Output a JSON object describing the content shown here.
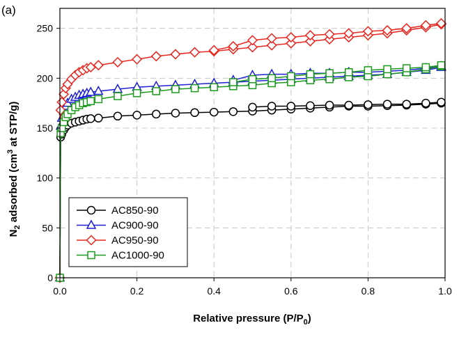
{
  "panel_label": "(a)",
  "chart_data": {
    "type": "line",
    "xlim": [
      0.0,
      1.0
    ],
    "ylim": [
      0,
      270
    ],
    "x_ticks": [
      {
        "value": 0.0,
        "label": "0.0"
      },
      {
        "value": 0.2,
        "label": "0.2"
      },
      {
        "value": 0.4,
        "label": "0.4"
      },
      {
        "value": 0.6,
        "label": "0.6"
      },
      {
        "value": 0.8,
        "label": "0.8"
      },
      {
        "value": 1.0,
        "label": "1.0"
      }
    ],
    "y_ticks": [
      {
        "value": 0,
        "label": "0"
      },
      {
        "value": 50,
        "label": "50"
      },
      {
        "value": 100,
        "label": "100"
      },
      {
        "value": 150,
        "label": "150"
      },
      {
        "value": 200,
        "label": "200"
      },
      {
        "value": 250,
        "label": "250"
      }
    ],
    "grid": true,
    "legend_position": "bottom-left",
    "xlabel": {
      "main": "Relative pressure (P/P",
      "sub": "0",
      "tail": ")"
    },
    "ylabel": {
      "pre": "N",
      "sub": "2",
      "mid": " adsorbed (cm",
      "sup": "3",
      "tail": " at STP/g)"
    },
    "series": [
      {
        "name": "AC850-90",
        "color": "#000000",
        "marker": "circle",
        "adsorption": {
          "x": [
            0.0,
            0.002,
            0.005,
            0.01,
            0.015,
            0.02,
            0.03,
            0.04,
            0.05,
            0.06,
            0.07,
            0.08,
            0.1,
            0.15,
            0.2,
            0.25,
            0.3,
            0.35,
            0.4,
            0.45,
            0.5,
            0.55,
            0.6,
            0.65,
            0.7,
            0.75,
            0.8,
            0.85,
            0.9,
            0.95,
            0.99
          ],
          "y": [
            0,
            141,
            144,
            148,
            151,
            153,
            155,
            156,
            157,
            158,
            159,
            159.5,
            160,
            162,
            163,
            164,
            165,
            165.5,
            166,
            166.5,
            167,
            168,
            169,
            170,
            171,
            172,
            172,
            172.5,
            173,
            174,
            175
          ]
        },
        "desorption": {
          "x": [
            0.99,
            0.95,
            0.9,
            0.85,
            0.8,
            0.75,
            0.7,
            0.65,
            0.6,
            0.55,
            0.5
          ],
          "y": [
            176,
            175,
            174,
            174,
            173.5,
            173,
            173,
            172.5,
            172,
            172,
            171
          ]
        }
      },
      {
        "name": "AC900-90",
        "color": "#1f1fd6",
        "marker": "triangle",
        "adsorption": {
          "x": [
            0.0,
            0.002,
            0.005,
            0.01,
            0.015,
            0.02,
            0.03,
            0.04,
            0.05,
            0.06,
            0.07,
            0.08,
            0.1,
            0.15,
            0.2,
            0.25,
            0.3,
            0.35,
            0.4,
            0.45,
            0.5,
            0.55,
            0.6,
            0.65,
            0.7,
            0.75,
            0.8,
            0.85,
            0.9,
            0.95,
            0.99
          ],
          "y": [
            0,
            152,
            160,
            167,
            172,
            175,
            179,
            181,
            183,
            184,
            185,
            186,
            187,
            189,
            191,
            192,
            193,
            194,
            195,
            196,
            197,
            198,
            199,
            200,
            201,
            202,
            203,
            204,
            206,
            208,
            211
          ]
        },
        "desorption": {
          "x": [
            0.99,
            0.95,
            0.9,
            0.85,
            0.8,
            0.75,
            0.7,
            0.65,
            0.6,
            0.55,
            0.5,
            0.45
          ],
          "y": [
            212,
            210,
            208,
            207,
            206,
            206,
            205,
            205,
            204,
            204,
            203,
            198
          ]
        }
      },
      {
        "name": "AC950-90",
        "color": "#e8261e",
        "marker": "diamond",
        "adsorption": {
          "x": [
            0.0,
            0.002,
            0.005,
            0.01,
            0.015,
            0.02,
            0.03,
            0.04,
            0.05,
            0.06,
            0.07,
            0.08,
            0.1,
            0.15,
            0.2,
            0.25,
            0.3,
            0.35,
            0.4,
            0.45,
            0.5,
            0.55,
            0.6,
            0.65,
            0.7,
            0.75,
            0.8,
            0.85,
            0.9,
            0.95,
            0.99
          ],
          "y": [
            0,
            168,
            176,
            184,
            190,
            194,
            199,
            203,
            206,
            208,
            210,
            211,
            213,
            216,
            219,
            222,
            224,
            226,
            227,
            229,
            231,
            233,
            235,
            237,
            239,
            241,
            243,
            245,
            248,
            251,
            254
          ]
        },
        "desorption": {
          "x": [
            0.99,
            0.95,
            0.9,
            0.85,
            0.8,
            0.75,
            0.7,
            0.65,
            0.6,
            0.55,
            0.5,
            0.45,
            0.4
          ],
          "y": [
            255,
            253,
            250,
            248,
            247,
            245,
            244,
            243,
            241,
            240,
            238,
            232,
            228
          ]
        }
      },
      {
        "name": "AC1000-90",
        "color": "#1c9a1c",
        "marker": "square",
        "adsorption": {
          "x": [
            0.0,
            0.002,
            0.005,
            0.01,
            0.015,
            0.02,
            0.03,
            0.04,
            0.05,
            0.06,
            0.07,
            0.08,
            0.1,
            0.15,
            0.2,
            0.25,
            0.3,
            0.35,
            0.4,
            0.45,
            0.5,
            0.55,
            0.6,
            0.65,
            0.7,
            0.75,
            0.8,
            0.85,
            0.9,
            0.95,
            0.99
          ],
          "y": [
            0,
            145,
            150,
            156,
            161,
            164,
            168,
            171,
            173,
            175,
            176,
            177,
            179,
            182,
            185,
            187,
            189,
            190,
            191,
            192,
            193,
            195,
            196,
            198,
            199,
            201,
            202,
            204,
            206,
            209,
            212
          ]
        },
        "desorption": {
          "x": [
            0.99,
            0.95,
            0.9,
            0.85,
            0.8,
            0.75,
            0.7,
            0.65,
            0.6,
            0.55,
            0.5,
            0.45
          ],
          "y": [
            213,
            211,
            210,
            209,
            208,
            206,
            205,
            204,
            202,
            200,
            199,
            196
          ]
        }
      }
    ]
  }
}
